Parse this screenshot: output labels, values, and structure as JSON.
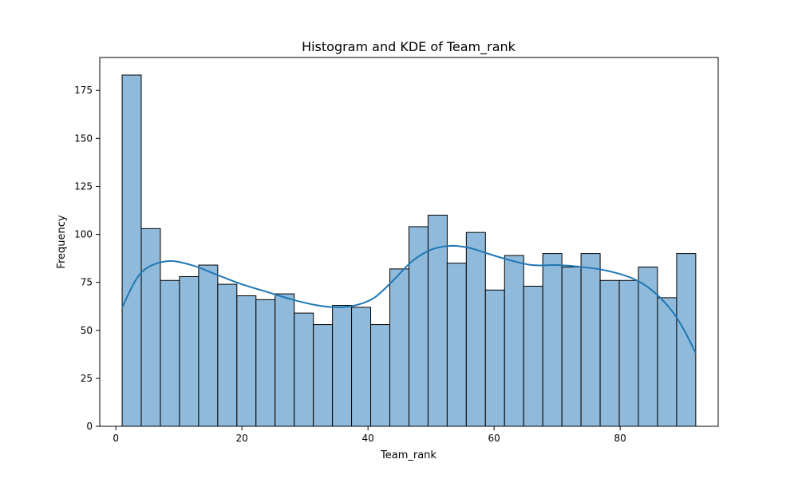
{
  "chart_data": {
    "type": "bar",
    "title": "Histogram and KDE of Team_rank",
    "xlabel": "Team_rank",
    "ylabel": "Frequency",
    "xlim": [
      -2.55,
      95.55
    ],
    "ylim": [
      0,
      192.15
    ],
    "xticks": [
      0,
      20,
      40,
      60,
      80
    ],
    "yticks": [
      0,
      25,
      50,
      75,
      100,
      125,
      150,
      175
    ],
    "grid": false,
    "legend": "none",
    "bar_color": "#8fbadb",
    "kde_color": "#1f77b4",
    "bins": {
      "start": 1,
      "width": 3.033,
      "values": [
        183,
        103,
        76,
        78,
        84,
        74,
        68,
        66,
        69,
        59,
        53,
        63,
        62,
        53,
        82,
        104,
        110,
        85,
        101,
        71,
        89,
        73,
        90,
        83,
        90,
        76,
        76,
        83,
        67,
        90
      ]
    },
    "kde": {
      "x": [
        1,
        4,
        8,
        12,
        16,
        20,
        24,
        28,
        32,
        35,
        38,
        41,
        44,
        47,
        50,
        53,
        56,
        59,
        62,
        66,
        70,
        74,
        78,
        82,
        85,
        88,
        90,
        92
      ],
      "y": [
        62,
        80,
        86,
        84,
        79,
        74,
        70,
        66,
        63,
        62,
        63,
        67,
        76,
        86,
        92,
        94,
        93,
        90,
        87,
        84,
        84,
        83,
        81,
        77,
        71,
        61,
        51,
        38
      ]
    }
  }
}
